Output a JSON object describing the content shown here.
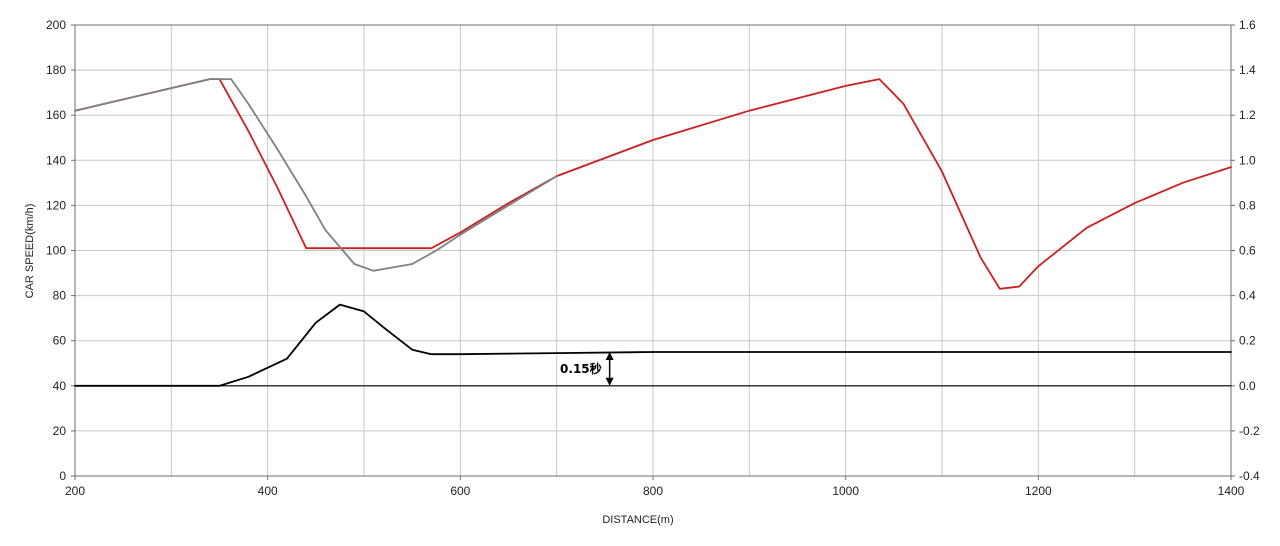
{
  "chart_data": {
    "type": "line",
    "title": "",
    "xlabel": "DISTANCE(m)",
    "ylabel": "CAR SPEED(km/h)",
    "y2label": "",
    "xlim": [
      200,
      1400
    ],
    "ylim": [
      0,
      200
    ],
    "y2lim": [
      -0.4,
      1.6
    ],
    "grid": true,
    "legend": "none",
    "x_ticks": [
      "200",
      "400",
      "600",
      "800",
      "1000",
      "1200",
      "1400"
    ],
    "y_ticks": [
      "0",
      "20",
      "40",
      "60",
      "80",
      "100",
      "120",
      "140",
      "160",
      "180",
      "200"
    ],
    "y2_ticks": [
      "-0.4",
      "-0.2",
      "0.0",
      "0.2",
      "0.4",
      "0.6",
      "0.8",
      "1.0",
      "1.2",
      "1.4",
      "1.6"
    ],
    "annotation": {
      "text": "0.15秒",
      "x": 755,
      "y_from": 0.0,
      "y_to": 0.15
    },
    "series": [
      {
        "axis": "left",
        "color": "#cc1f1f",
        "x": [
          200,
          250,
          300,
          340,
          350,
          380,
          410,
          440,
          450,
          500,
          570,
          600,
          650,
          700,
          800,
          900,
          1000,
          1035,
          1060,
          1100,
          1140,
          1160,
          1180,
          1200,
          1250,
          1300,
          1350,
          1400
        ],
        "y": [
          162,
          167,
          172,
          176,
          176,
          153,
          128,
          101,
          101,
          101,
          101,
          108,
          121,
          133,
          149,
          162,
          173,
          176,
          165,
          135,
          97,
          83,
          84,
          93,
          110,
          121,
          130,
          137
        ]
      },
      {
        "axis": "left",
        "color": "#808080",
        "x": [
          200,
          250,
          300,
          340,
          362,
          380,
          410,
          440,
          460,
          490,
          510,
          550,
          575,
          600,
          650,
          700
        ],
        "y": [
          162,
          167,
          172,
          176,
          176,
          165,
          145,
          124,
          109,
          94,
          91,
          94,
          100,
          107,
          120,
          133
        ]
      },
      {
        "axis": "right",
        "color": "#000000",
        "x": [
          200,
          320,
          350,
          380,
          420,
          450,
          475,
          500,
          520,
          550,
          570,
          600,
          700,
          800,
          1000,
          1400
        ],
        "y": [
          0.0,
          0.0,
          0.0,
          0.04,
          0.12,
          0.28,
          0.36,
          0.33,
          0.26,
          0.16,
          0.14,
          0.14,
          0.145,
          0.15,
          0.15,
          0.15
        ]
      },
      {
        "axis": "right",
        "color": "#000000",
        "x": [
          200,
          1400
        ],
        "y": [
          0.0,
          0.0
        ]
      }
    ]
  }
}
